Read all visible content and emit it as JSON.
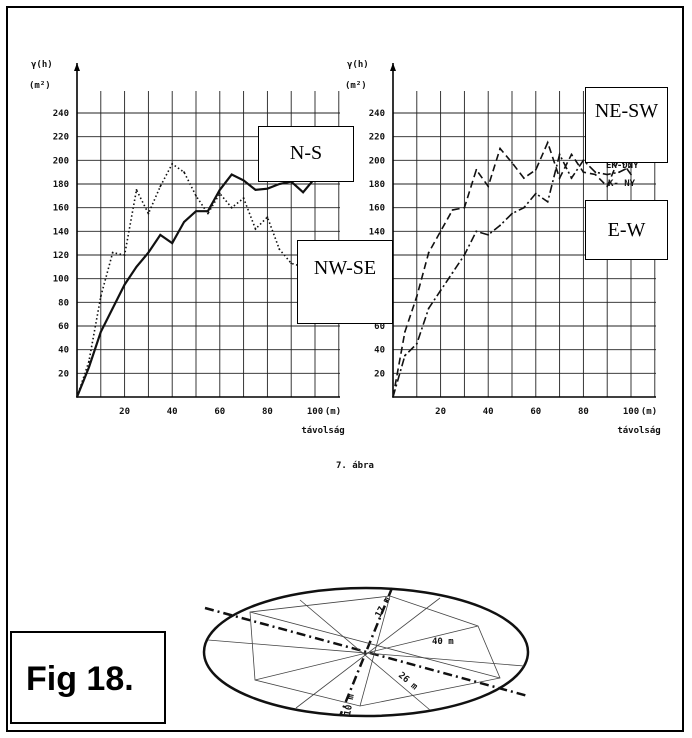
{
  "figure_label": "Fig 18.",
  "caption": "7. ábra",
  "chart_data": [
    {
      "type": "line",
      "ylabel": "γ(h)",
      "yunit": "(m²)",
      "xlabel": "távolság",
      "xunit": "(m)",
      "xlim": [
        0,
        110
      ],
      "ylim": [
        0,
        260
      ],
      "x_ticks": [
        20,
        40,
        60,
        80,
        100
      ],
      "y_ticks": [
        20,
        40,
        60,
        80,
        100,
        120,
        140,
        160,
        180,
        200,
        220,
        240
      ],
      "grid": true,
      "series": [
        {
          "name": "N-S",
          "style": "solid",
          "x": [
            0,
            5,
            10,
            15,
            20,
            25,
            30,
            35,
            40,
            45,
            50,
            55,
            60,
            65,
            70,
            75,
            80,
            85,
            90,
            95,
            100
          ],
          "y": [
            0,
            25,
            55,
            75,
            95,
            110,
            122,
            137,
            130,
            148,
            157,
            157,
            175,
            188,
            183,
            175,
            176,
            180,
            182,
            173,
            185
          ]
        },
        {
          "name": "NW-SE",
          "style": "dotted",
          "x": [
            0,
            5,
            10,
            15,
            20,
            25,
            30,
            35,
            40,
            45,
            50,
            55,
            60,
            65,
            70,
            75,
            80,
            85,
            90,
            95,
            100
          ],
          "y": [
            0,
            30,
            85,
            122,
            120,
            175,
            155,
            178,
            197,
            190,
            170,
            155,
            172,
            160,
            168,
            142,
            152,
            125,
            113,
            110,
            110
          ]
        }
      ],
      "annotations": [
        "N-S",
        "NW-SE"
      ]
    },
    {
      "type": "line",
      "ylabel": "γ(h)",
      "yunit": "(m²)",
      "xlabel": "távolság",
      "xunit": "(m)",
      "xlim": [
        0,
        110
      ],
      "ylim": [
        0,
        260
      ],
      "x_ticks": [
        20,
        40,
        60,
        80,
        100
      ],
      "y_ticks": [
        20,
        40,
        60,
        80,
        100,
        120,
        140,
        160,
        180,
        200,
        220,
        240
      ],
      "grid": true,
      "legend_text": [
        "ÉK-DNY",
        "K- NY"
      ],
      "series": [
        {
          "name": "NE-SW",
          "style": "dashed",
          "x": [
            0,
            5,
            10,
            15,
            20,
            25,
            30,
            35,
            40,
            45,
            50,
            55,
            60,
            65,
            70,
            75,
            80,
            85,
            90,
            95,
            100
          ],
          "y": [
            0,
            55,
            85,
            122,
            140,
            158,
            160,
            192,
            178,
            210,
            198,
            185,
            192,
            215,
            185,
            205,
            190,
            188,
            178,
            202,
            188
          ]
        },
        {
          "name": "E-W",
          "style": "dash-dot",
          "x": [
            0,
            5,
            10,
            15,
            20,
            25,
            30,
            35,
            40,
            45,
            50,
            55,
            60,
            65,
            70,
            75,
            80,
            85,
            90,
            95,
            100
          ],
          "y": [
            0,
            35,
            45,
            75,
            90,
            105,
            120,
            140,
            137,
            145,
            155,
            160,
            172,
            165,
            205,
            185,
            200,
            190,
            188,
            190,
            195
          ]
        }
      ],
      "annotations": [
        "NE-SW",
        "E-W"
      ]
    }
  ],
  "ellipse": {
    "labels": [
      "17 m",
      "40 m",
      "26 m",
      "10 m"
    ]
  },
  "colors": {
    "line": "#111111",
    "grid": "#222222",
    "background": "#ffffff"
  }
}
